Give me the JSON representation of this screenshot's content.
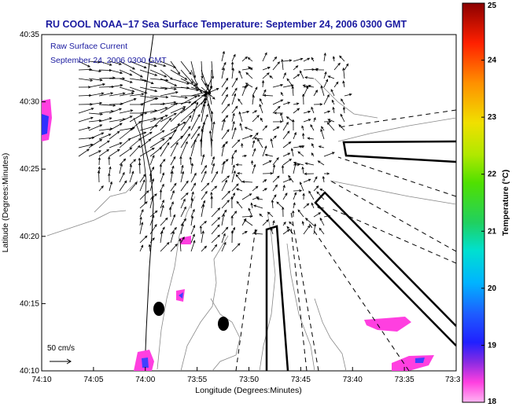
{
  "chart_data": {
    "type": "vector_field_map",
    "title": "RU COOL  NOAA−17  Sea Surface Temperature:  September 24, 2006 0300 GMT",
    "subtitle_lines": [
      "Raw Surface Current",
      "September 24, 2006 0300 GMT"
    ],
    "xlabel": "Longitude (Degrees:Minutes)",
    "ylabel": "Latitude (Degrees:Minutes)",
    "x_ticks": [
      "74:10",
      "74:05",
      "74:00",
      "73:55",
      "73:50",
      "73:45",
      "73:40",
      "73:35",
      "73:3"
    ],
    "y_ticks": [
      "40:35",
      "40:30",
      "40:25",
      "40:20",
      "40:15",
      "40:10"
    ],
    "x_range_min": [
      -74.1667,
      -73.5333
    ],
    "y_range_min": [
      40.1667,
      40.5833
    ],
    "colorbar": {
      "label": "Temperature (°C)",
      "range": [
        18,
        25
      ],
      "ticks": [
        "18",
        "19",
        "20",
        "21",
        "22",
        "23",
        "24",
        "25"
      ]
    },
    "scale_arrow_label": "50 cm/s",
    "colors": {
      "title": "#1a1aa0",
      "coast": "#000000",
      "bathymetry": "#888888",
      "sst_patches": "#ff33cc"
    }
  }
}
